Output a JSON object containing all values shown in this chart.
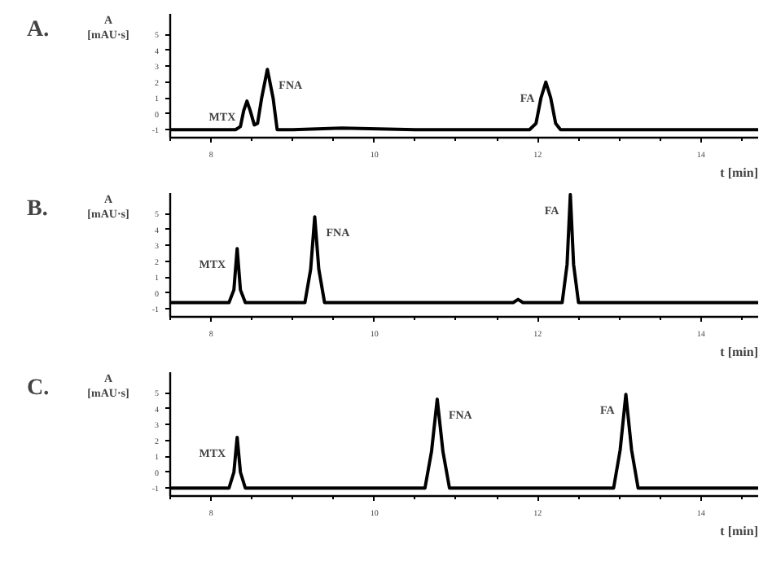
{
  "chart_data": [
    {
      "type": "line",
      "title": "A.",
      "xlabel": "t [min]",
      "ylabel": "A\n[mAU·s]",
      "xlim": [
        7.5,
        14.7
      ],
      "ylim": [
        -1.5,
        6.3
      ],
      "xticks": [
        8,
        10,
        12,
        14
      ],
      "yticks": [
        -1,
        0,
        1,
        2,
        3,
        4,
        5
      ],
      "x": [
        7.5,
        8.0,
        8.3,
        8.36,
        8.4,
        8.44,
        8.48,
        8.53,
        8.57,
        8.62,
        8.69,
        8.76,
        8.81,
        9.0,
        9.6,
        10.5,
        11.9,
        11.98,
        12.04,
        12.1,
        12.16,
        12.22,
        12.28,
        13.0,
        14.0,
        14.7
      ],
      "series": [
        {
          "color": "#000000",
          "values": [
            -1.0,
            -1.0,
            -1.0,
            -0.8,
            0.2,
            0.8,
            0.2,
            -0.7,
            -0.6,
            1.0,
            2.8,
            1.0,
            -1.0,
            -1.0,
            -0.9,
            -1.0,
            -1.0,
            -0.6,
            1.0,
            2.0,
            1.0,
            -0.6,
            -1.0,
            -1.0,
            -1.0,
            -1.0
          ]
        }
      ],
      "annotations": [
        {
          "text": "MTX",
          "x": 8.44,
          "y": 0.8
        },
        {
          "text": "FNA",
          "x": 8.69,
          "y": 2.8
        },
        {
          "text": "FA",
          "x": 12.1,
          "y": 2.0
        }
      ]
    },
    {
      "type": "line",
      "title": "B.",
      "xlabel": "t [min]",
      "ylabel": "A\n[mAU·s]",
      "xlim": [
        7.5,
        14.7
      ],
      "ylim": [
        -1.5,
        6.3
      ],
      "xticks": [
        8,
        10,
        12,
        14
      ],
      "yticks": [
        -1,
        0,
        1,
        2,
        3,
        4,
        5
      ],
      "x": [
        7.5,
        8.0,
        8.22,
        8.28,
        8.32,
        8.36,
        8.42,
        9.0,
        9.15,
        9.22,
        9.27,
        9.32,
        9.39,
        10.0,
        11.0,
        11.7,
        11.76,
        11.82,
        12.0,
        12.3,
        12.36,
        12.4,
        12.44,
        12.5,
        13.0,
        14.0,
        14.7
      ],
      "series": [
        {
          "color": "#000000",
          "values": [
            -0.6,
            -0.6,
            -0.6,
            0.2,
            2.8,
            0.2,
            -0.6,
            -0.6,
            -0.6,
            1.5,
            4.8,
            1.5,
            -0.6,
            -0.6,
            -0.6,
            -0.6,
            -0.4,
            -0.6,
            -0.6,
            -0.6,
            1.8,
            6.2,
            1.8,
            -0.6,
            -0.6,
            -0.6,
            -0.6
          ]
        }
      ],
      "annotations": [
        {
          "text": "MTX",
          "x": 8.32,
          "y": 2.8
        },
        {
          "text": "FNA",
          "x": 9.27,
          "y": 4.8
        },
        {
          "text": "FA",
          "x": 12.4,
          "y": 6.2
        }
      ]
    },
    {
      "type": "line",
      "title": "C.",
      "xlabel": "t [min]",
      "ylabel": "A\n[mAU·s]",
      "xlim": [
        7.5,
        14.7
      ],
      "ylim": [
        -1.5,
        6.3
      ],
      "xticks": [
        8,
        10,
        12,
        14
      ],
      "yticks": [
        -1,
        0,
        1,
        2,
        3,
        4,
        5
      ],
      "x": [
        7.5,
        8.0,
        8.22,
        8.28,
        8.32,
        8.36,
        8.42,
        9.5,
        10.62,
        10.7,
        10.77,
        10.84,
        10.92,
        12.0,
        12.93,
        13.01,
        13.08,
        13.15,
        13.23,
        14.0,
        14.7
      ],
      "series": [
        {
          "color": "#000000",
          "values": [
            -1.0,
            -1.0,
            -1.0,
            0.0,
            2.2,
            0.0,
            -1.0,
            -1.0,
            -1.0,
            1.3,
            4.6,
            1.3,
            -1.0,
            -1.0,
            -1.0,
            1.4,
            4.9,
            1.4,
            -1.0,
            -1.0,
            -1.0
          ]
        }
      ],
      "annotations": [
        {
          "text": "MTX",
          "x": 8.32,
          "y": 2.2
        },
        {
          "text": "FNA",
          "x": 10.77,
          "y": 4.6
        },
        {
          "text": "FA",
          "x": 13.08,
          "y": 4.9
        }
      ]
    }
  ]
}
